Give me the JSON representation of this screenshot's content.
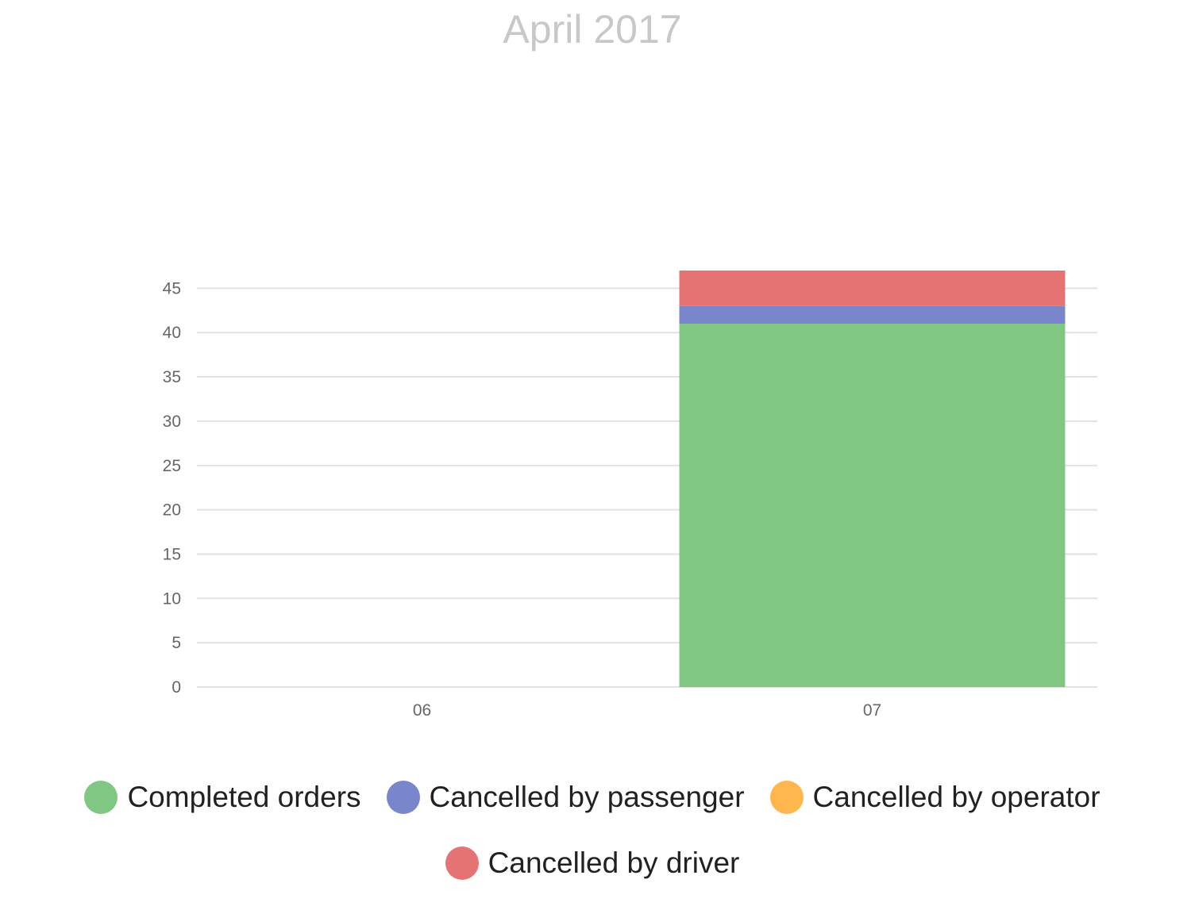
{
  "chart_data": {
    "type": "bar",
    "stacked": true,
    "title": "April 2017",
    "xlabel": "",
    "ylabel": "",
    "categories": [
      "06",
      "07"
    ],
    "ylim": [
      0,
      45
    ],
    "yticks": [
      0,
      5,
      10,
      15,
      20,
      25,
      30,
      35,
      40,
      45
    ],
    "grid": true,
    "legend_position": "bottom",
    "series": [
      {
        "name": "Completed orders",
        "color": "#81c784",
        "values": [
          0,
          41
        ]
      },
      {
        "name": "Cancelled by passenger",
        "color": "#7986cb",
        "values": [
          0,
          2
        ]
      },
      {
        "name": "Cancelled by operator",
        "color": "#ffb74d",
        "values": [
          0,
          0
        ]
      },
      {
        "name": "Cancelled by driver",
        "color": "#e57373",
        "values": [
          0,
          4
        ]
      }
    ]
  }
}
